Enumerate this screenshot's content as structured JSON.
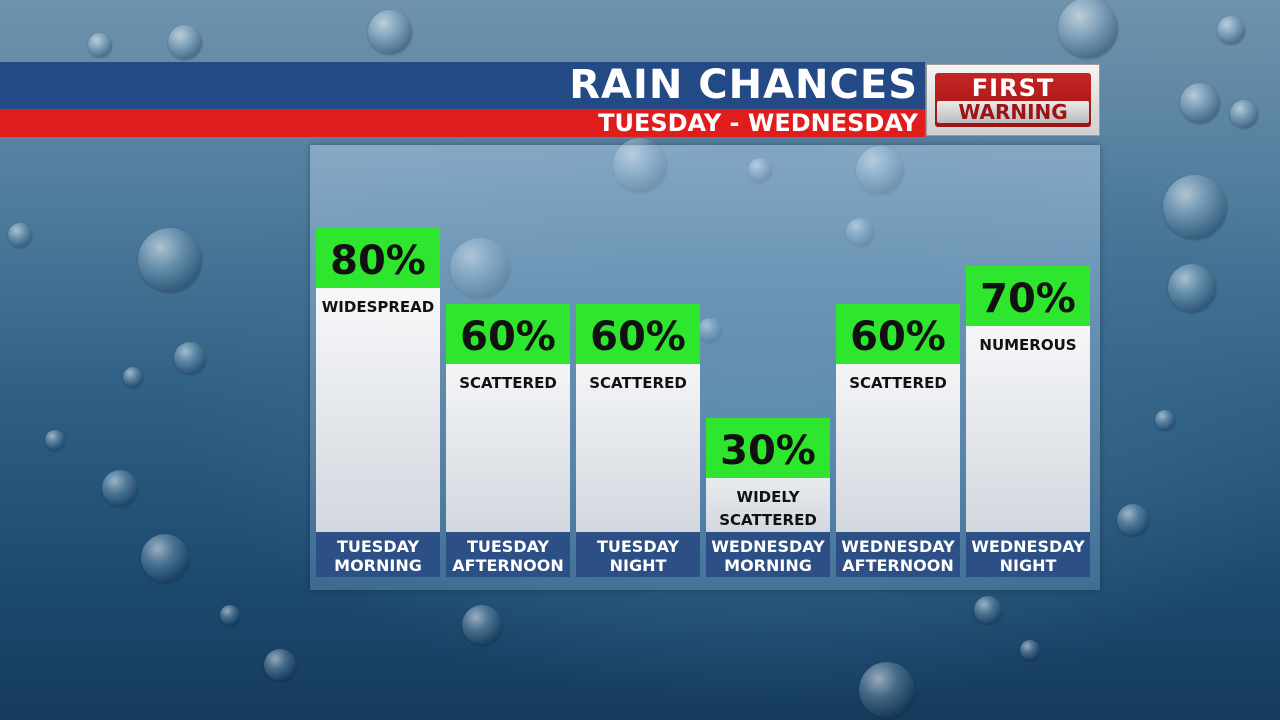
{
  "header": {
    "title": "RAIN CHANCES",
    "subtitle": "TUESDAY - WEDNESDAY",
    "badge_line1": "FIRST",
    "badge_line2": "WARNING"
  },
  "colors": {
    "header_blue": "#244a86",
    "header_red": "#e01d1d",
    "percent_green": "#2ee62e",
    "label_bar": "#2c4f86"
  },
  "chart_data": {
    "type": "bar",
    "title": "RAIN CHANCES",
    "subtitle": "TUESDAY - WEDNESDAY",
    "unit": "%",
    "ylim": [
      0,
      100
    ],
    "categories": [
      [
        "TUESDAY",
        "MORNING"
      ],
      [
        "TUESDAY",
        "AFTERNOON"
      ],
      [
        "TUESDAY",
        "NIGHT"
      ],
      [
        "WEDNESDAY",
        "MORNING"
      ],
      [
        "WEDNESDAY",
        "AFTERNOON"
      ],
      [
        "WEDNESDAY",
        "NIGHT"
      ]
    ],
    "values": [
      80,
      60,
      60,
      30,
      60,
      70
    ],
    "value_labels": [
      "80%",
      "60%",
      "60%",
      "30%",
      "60%",
      "70%"
    ],
    "descriptions": [
      [
        "WIDESPREAD"
      ],
      [
        "SCATTERED"
      ],
      [
        "SCATTERED"
      ],
      [
        "WIDELY",
        "SCATTERED"
      ],
      [
        "SCATTERED"
      ],
      [
        "NUMEROUS"
      ]
    ]
  }
}
